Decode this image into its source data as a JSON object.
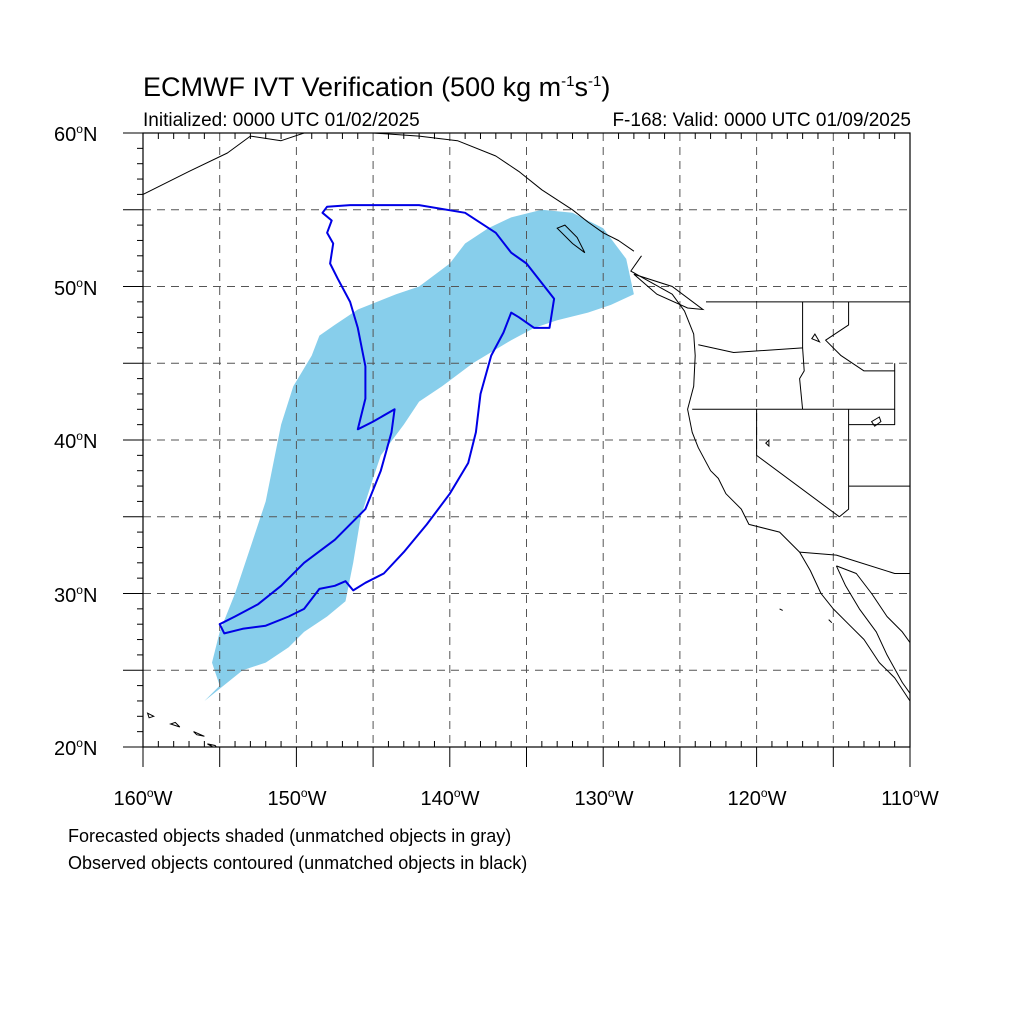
{
  "header": {
    "title_text": "ECMWF IVT Verification (500 kg m",
    "title_sup1": "-1",
    "title_mid": "s",
    "title_sup2": "-1",
    "title_end": ")",
    "initialized": "Initialized: 0000 UTC 01/02/2025",
    "valid": "F-168: Valid: 0000 UTC 01/09/2025"
  },
  "axes": {
    "lat_labels": [
      "60",
      "50",
      "40",
      "30",
      "20"
    ],
    "lat_suffix": "N",
    "lon_labels": [
      "160",
      "150",
      "140",
      "130",
      "120",
      "110"
    ],
    "lon_suffix": "W",
    "lat_range": [
      20,
      60
    ],
    "lon_range": [
      -160,
      -110
    ],
    "grid_spacing_deg": 5,
    "grid": "dashed"
  },
  "legend": {
    "line1": "Forecasted objects shaded (unmatched objects in gray)",
    "line2": "Observed objects contoured (unmatched objects in black)"
  },
  "colors": {
    "forecast_fill": "#87ceeb",
    "observed_contour": "#0000e6",
    "coastline": "#000000",
    "grid": "#555555"
  },
  "map": {
    "forecast_object": [
      [
        -156.0,
        23.0
      ],
      [
        -155.0,
        24.0
      ],
      [
        -155.5,
        25.5
      ],
      [
        -155.0,
        27.5
      ],
      [
        -154.0,
        30.0
      ],
      [
        -153.0,
        33.0
      ],
      [
        -152.0,
        36.0
      ],
      [
        -151.5,
        38.5
      ],
      [
        -151.0,
        41.0
      ],
      [
        -150.2,
        43.5
      ],
      [
        -149.0,
        45.5
      ],
      [
        -148.5,
        46.8
      ],
      [
        -147.5,
        47.5
      ],
      [
        -146.0,
        48.5
      ],
      [
        -143.5,
        49.5
      ],
      [
        -142.0,
        50.0
      ],
      [
        -140.0,
        51.5
      ],
      [
        -139.0,
        52.8
      ],
      [
        -137.5,
        53.8
      ],
      [
        -136.0,
        54.5
      ],
      [
        -134.0,
        55.0
      ],
      [
        -132.0,
        54.8
      ],
      [
        -130.0,
        53.8
      ],
      [
        -128.5,
        51.8
      ],
      [
        -128.0,
        49.5
      ],
      [
        -129.5,
        48.8
      ],
      [
        -131.0,
        48.3
      ],
      [
        -133.0,
        47.8
      ],
      [
        -134.5,
        47.3
      ],
      [
        -136.0,
        46.5
      ],
      [
        -138.5,
        45.0
      ],
      [
        -140.5,
        43.5
      ],
      [
        -142.0,
        42.5
      ],
      [
        -143.0,
        41.0
      ],
      [
        -144.5,
        39.0
      ],
      [
        -145.0,
        37.5
      ],
      [
        -145.8,
        35.0
      ],
      [
        -146.3,
        32.0
      ],
      [
        -146.8,
        29.5
      ],
      [
        -148.0,
        28.5
      ],
      [
        -149.5,
        27.5
      ],
      [
        -150.5,
        26.5
      ],
      [
        -152.0,
        25.5
      ],
      [
        -153.5,
        25.0
      ],
      [
        -155.0,
        23.8
      ],
      [
        -156.0,
        23.0
      ]
    ],
    "observed_object": [
      [
        -145.0,
        55.3
      ],
      [
        -146.5,
        55.3
      ],
      [
        -148.0,
        55.2
      ],
      [
        -148.3,
        54.8
      ],
      [
        -147.7,
        54.3
      ],
      [
        -148.0,
        53.5
      ],
      [
        -147.6,
        52.8
      ],
      [
        -147.8,
        51.5
      ],
      [
        -147.3,
        50.5
      ],
      [
        -146.5,
        49.0
      ],
      [
        -146.0,
        47.3
      ],
      [
        -145.5,
        44.8
      ],
      [
        -145.5,
        42.7
      ],
      [
        -146.0,
        40.7
      ],
      [
        -145.0,
        41.2
      ],
      [
        -143.6,
        42.0
      ],
      [
        -143.8,
        40.5
      ],
      [
        -144.5,
        38.0
      ],
      [
        -145.5,
        35.5
      ],
      [
        -147.5,
        33.5
      ],
      [
        -149.5,
        32.0
      ],
      [
        -151.0,
        30.5
      ],
      [
        -152.5,
        29.3
      ],
      [
        -154.0,
        28.5
      ],
      [
        -155.0,
        28.0
      ],
      [
        -154.7,
        27.4
      ],
      [
        -153.5,
        27.7
      ],
      [
        -152.0,
        27.9
      ],
      [
        -150.5,
        28.5
      ],
      [
        -149.5,
        29.0
      ],
      [
        -148.5,
        30.3
      ],
      [
        -147.5,
        30.5
      ],
      [
        -146.8,
        30.8
      ],
      [
        -146.3,
        30.2
      ],
      [
        -145.5,
        30.7
      ],
      [
        -144.3,
        31.3
      ],
      [
        -143.0,
        32.7
      ],
      [
        -141.5,
        34.5
      ],
      [
        -140.0,
        36.5
      ],
      [
        -138.8,
        38.5
      ],
      [
        -138.3,
        40.5
      ],
      [
        -138.0,
        43.0
      ],
      [
        -137.3,
        45.5
      ],
      [
        -136.5,
        47.0
      ],
      [
        -136.0,
        48.3
      ],
      [
        -135.5,
        48.0
      ],
      [
        -134.5,
        47.3
      ],
      [
        -133.5,
        47.3
      ],
      [
        -133.2,
        49.2
      ],
      [
        -135.0,
        51.5
      ],
      [
        -136.0,
        52.2
      ],
      [
        -137.0,
        53.5
      ],
      [
        -139.0,
        54.8
      ],
      [
        -142.0,
        55.3
      ],
      [
        -145.0,
        55.3
      ]
    ],
    "coast_west_us": [
      [
        -127.5,
        52.0
      ],
      [
        -128.2,
        51.0
      ],
      [
        -127.3,
        50.5
      ],
      [
        -125.5,
        49.5
      ],
      [
        -124.7,
        48.4
      ],
      [
        -124.1,
        46.9
      ],
      [
        -124.0,
        45.5
      ],
      [
        -124.1,
        43.5
      ],
      [
        -124.5,
        42.0
      ],
      [
        -124.2,
        40.5
      ],
      [
        -123.8,
        39.5
      ],
      [
        -123.0,
        38.0
      ],
      [
        -122.5,
        37.5
      ],
      [
        -122.0,
        36.5
      ],
      [
        -121.0,
        35.5
      ],
      [
        -120.5,
        34.5
      ],
      [
        -118.5,
        34.0
      ],
      [
        -117.2,
        32.7
      ],
      [
        -116.5,
        31.5
      ],
      [
        -115.8,
        30.0
      ],
      [
        -115.0,
        29.0
      ],
      [
        -114.0,
        28.0
      ],
      [
        -113.0,
        27.0
      ],
      [
        -112.0,
        25.5
      ],
      [
        -111.0,
        24.5
      ],
      [
        -110.0,
        23.0
      ]
    ],
    "coast_baja_east": [
      [
        -114.8,
        31.8
      ],
      [
        -114.2,
        30.5
      ],
      [
        -113.3,
        29.0
      ],
      [
        -112.2,
        27.5
      ],
      [
        -111.5,
        26.0
      ],
      [
        -110.5,
        24.2
      ],
      [
        -110.0,
        23.5
      ]
    ],
    "coast_mainland_mexico": [
      [
        -114.8,
        31.8
      ],
      [
        -113.5,
        31.3
      ],
      [
        -112.5,
        30.0
      ],
      [
        -111.5,
        28.5
      ],
      [
        -110.5,
        27.5
      ],
      [
        -110.0,
        26.8
      ]
    ],
    "coast_alaska_bc": [
      [
        -160.0,
        56.0
      ],
      [
        -157.0,
        57.5
      ],
      [
        -154.5,
        58.7
      ],
      [
        -153.0,
        59.8
      ],
      [
        -151.0,
        59.5
      ],
      [
        -149.5,
        60.0
      ],
      [
        -147.0,
        60.0
      ],
      [
        -145.0,
        60.0
      ],
      [
        -142.0,
        59.8
      ],
      [
        -139.5,
        59.5
      ],
      [
        -137.0,
        58.5
      ],
      [
        -135.5,
        57.5
      ],
      [
        -134.0,
        56.3
      ],
      [
        -132.0,
        55.0
      ],
      [
        -131.0,
        54.2
      ],
      [
        -130.0,
        53.5
      ],
      [
        -129.0,
        53.0
      ],
      [
        -128.0,
        52.3
      ]
    ],
    "state_borders": [
      [
        [
          -124.2,
          42.0
        ],
        [
          -117.0,
          42.0
        ],
        [
          -111.0,
          42.0
        ]
      ],
      [
        [
          -120.0,
          42.0
        ],
        [
          -120.0,
          39.0
        ],
        [
          -114.6,
          35.0
        ]
      ],
      [
        [
          -123.8,
          46.2
        ],
        [
          -121.5,
          45.7
        ],
        [
          -117.0,
          46.0
        ],
        [
          -117.0,
          49.0
        ]
      ],
      [
        [
          -117.0,
          46.0
        ],
        [
          -116.9,
          44.5
        ],
        [
          -117.2,
          44.0
        ],
        [
          -117.0,
          42.0
        ]
      ],
      [
        [
          -123.3,
          49.0
        ],
        [
          -110.0,
          49.0
        ]
      ],
      [
        [
          -114.0,
          49.0
        ],
        [
          -114.0,
          47.5
        ],
        [
          -115.5,
          46.5
        ],
        [
          -114.5,
          45.5
        ],
        [
          -113.0,
          44.5
        ],
        [
          -111.0,
          44.5
        ]
      ],
      [
        [
          -114.0,
          42.0
        ],
        [
          -114.0,
          35.5
        ],
        [
          -114.6,
          35.0
        ]
      ],
      [
        [
          -111.0,
          45.0
        ],
        [
          -111.0,
          41.0
        ],
        [
          -114.0,
          41.0
        ]
      ],
      [
        [
          -117.2,
          32.7
        ],
        [
          -114.8,
          32.5
        ],
        [
          -111.0,
          31.3
        ],
        [
          -110.0,
          31.3
        ]
      ],
      [
        [
          -114.0,
          37.0
        ],
        [
          -110.0,
          37.0
        ]
      ]
    ],
    "islands": [
      [
        [
          -155.8,
          20.2
        ],
        [
          -155.1,
          19.8
        ],
        [
          -154.8,
          19.5
        ],
        [
          -155.3,
          20.1
        ]
      ],
      [
        [
          -156.7,
          21.0
        ],
        [
          -156.0,
          20.7
        ],
        [
          -156.5,
          20.8
        ]
      ],
      [
        [
          -157.9,
          21.6
        ],
        [
          -157.6,
          21.3
        ],
        [
          -158.2,
          21.5
        ]
      ],
      [
        [
          -159.7,
          22.2
        ],
        [
          -159.3,
          22.0
        ],
        [
          -159.6,
          21.9
        ]
      ],
      [
        [
          -132.5,
          54.0
        ],
        [
          -131.7,
          53.2
        ],
        [
          -131.2,
          52.2
        ],
        [
          -132.0,
          52.8
        ],
        [
          -133.0,
          53.8
        ]
      ],
      [
        [
          -128.0,
          50.8
        ],
        [
          -125.5,
          50.0
        ],
        [
          -123.5,
          48.5
        ],
        [
          -124.5,
          48.6
        ],
        [
          -126.5,
          49.5
        ]
      ],
      [
        [
          -118.5,
          29.0
        ],
        [
          -118.3,
          28.9
        ]
      ],
      [
        [
          -115.3,
          28.3
        ],
        [
          -115.1,
          28.1
        ]
      ],
      [
        [
          -112.0,
          41.5
        ],
        [
          -112.5,
          41.2
        ],
        [
          -112.3,
          40.9
        ],
        [
          -111.9,
          41.2
        ]
      ]
    ],
    "lakes": [
      [
        [
          -116.4,
          46.6
        ],
        [
          -115.9,
          46.4
        ],
        [
          -116.2,
          46.9
        ]
      ],
      [
        [
          -119.2,
          40.0
        ],
        [
          -119.4,
          39.8
        ],
        [
          -119.2,
          39.6
        ]
      ]
    ]
  }
}
